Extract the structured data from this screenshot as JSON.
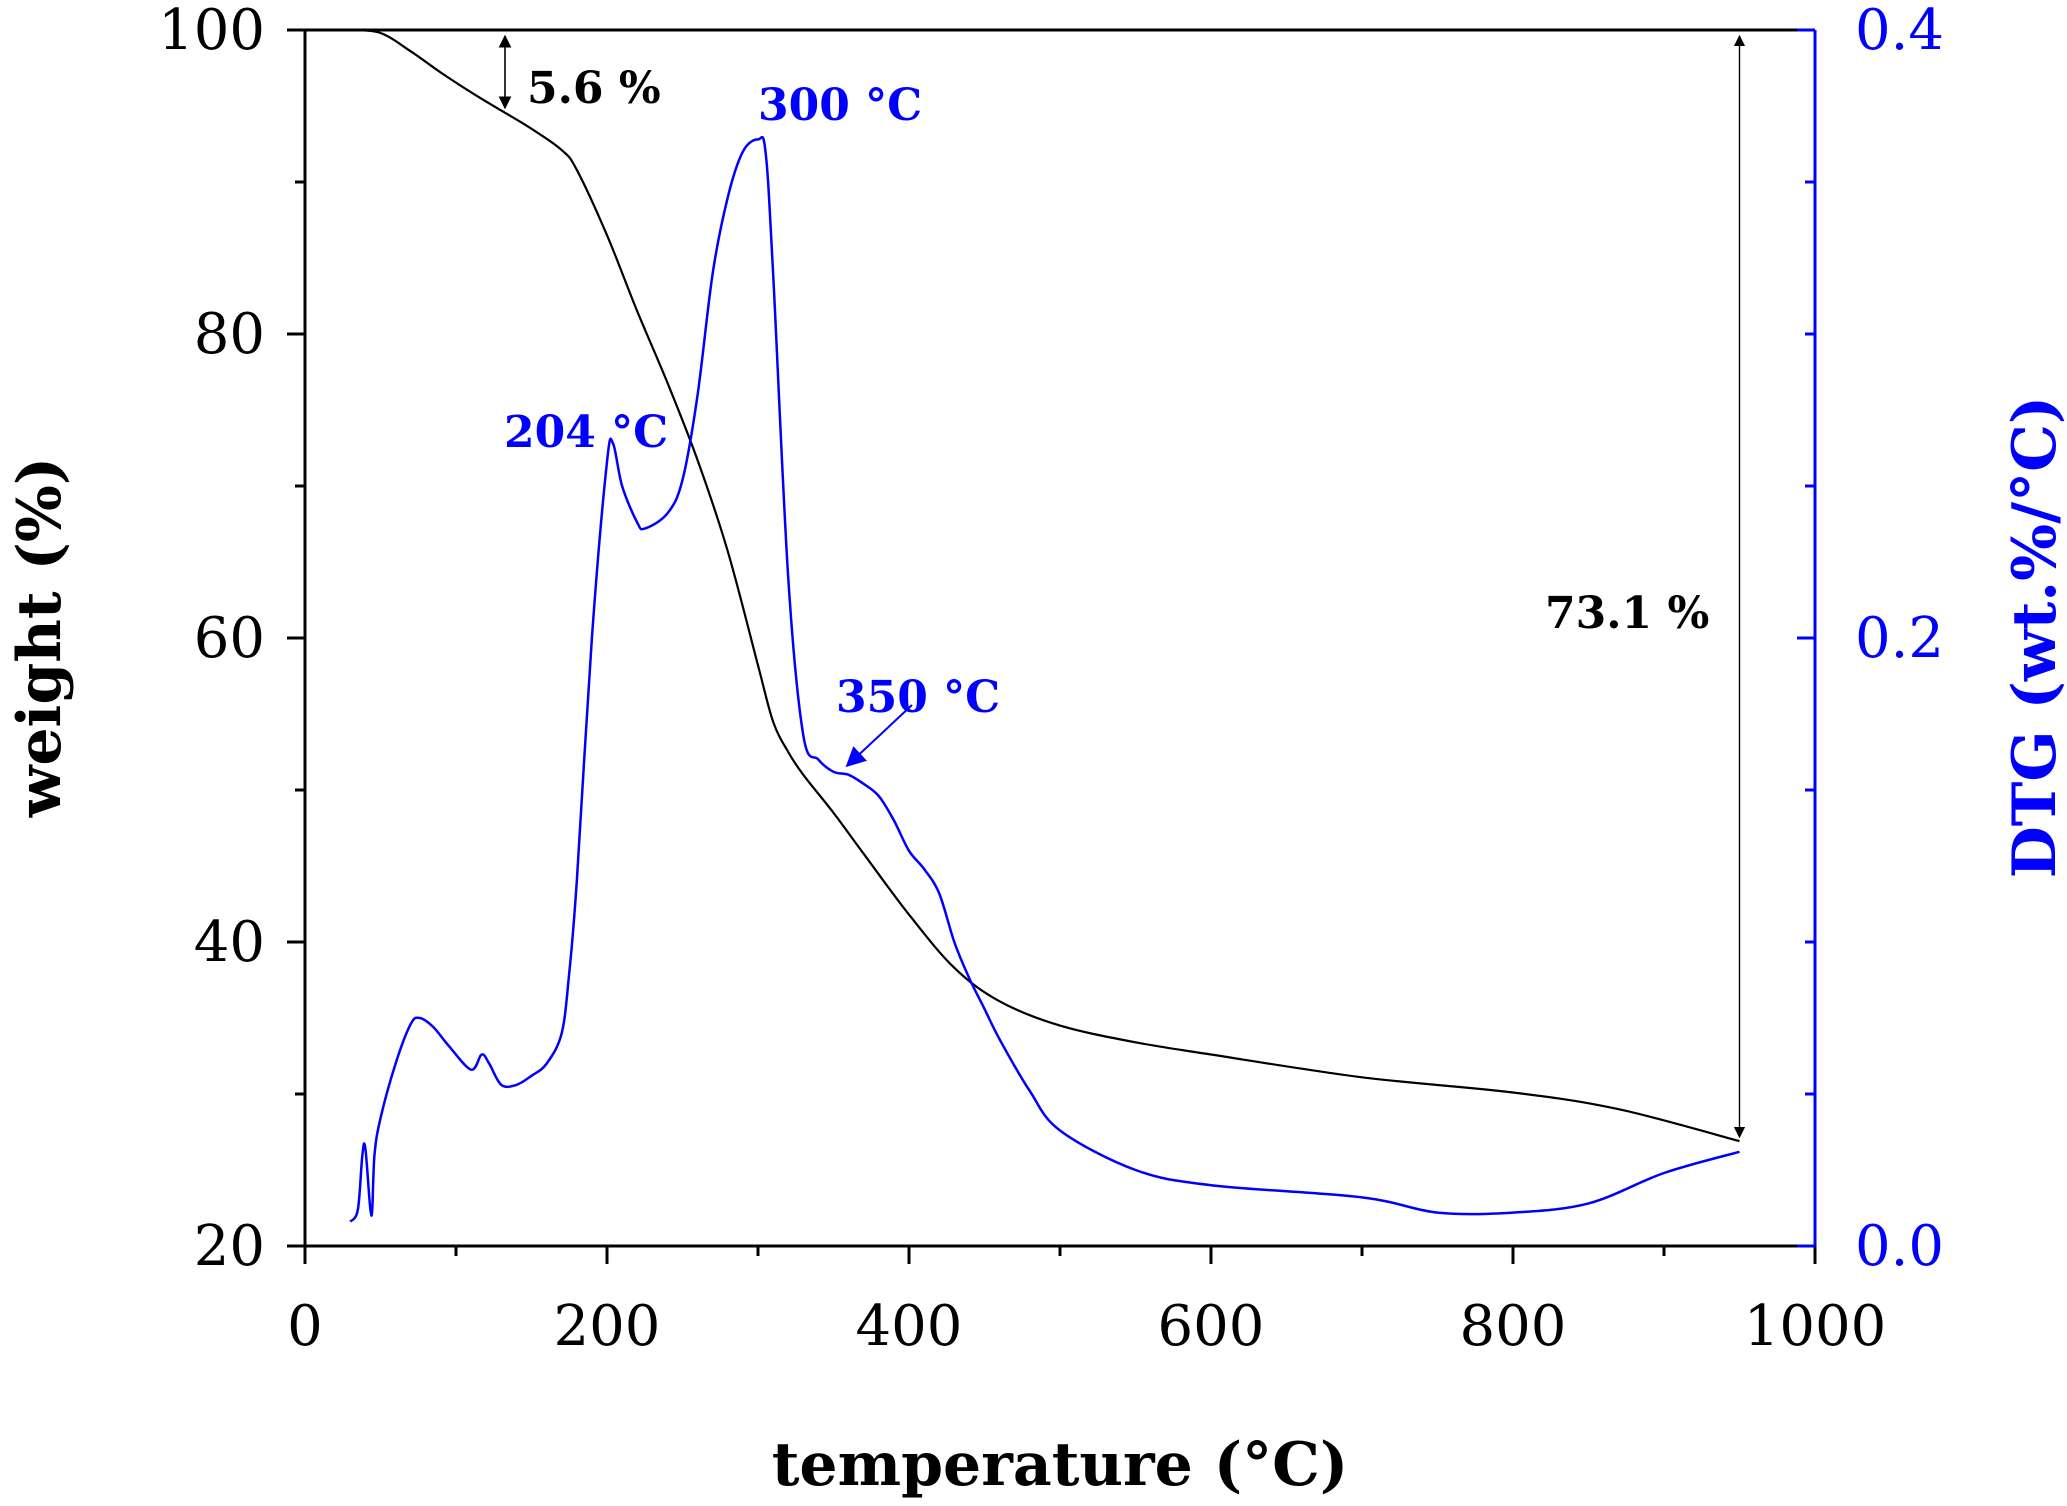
{
  "chart_data": {
    "type": "line",
    "title": "",
    "xlabel": "temperature (°C)",
    "ylabel_left": "weight (%)",
    "ylabel_right": "DTG (wt.%/°C)",
    "xlim": [
      0,
      1000
    ],
    "ylim_left": [
      20,
      100
    ],
    "ylim_right": [
      0.0,
      0.4
    ],
    "x_ticks": [
      "0",
      "200",
      "400",
      "600",
      "800",
      "1000"
    ],
    "y_left_ticks": [
      "20",
      "40",
      "60",
      "80",
      "100"
    ],
    "y_right_ticks": [
      "0.0",
      "0.2",
      "0.4"
    ],
    "grid": false,
    "legend": "none",
    "colors": {
      "weight": "#000000",
      "dtg": "#0000ff"
    },
    "series": [
      {
        "axis": "left",
        "x": [
          30,
          50,
          70,
          90,
          110,
          130,
          150,
          170,
          180,
          200,
          220,
          240,
          260,
          280,
          300,
          310,
          320,
          330,
          350,
          370,
          400,
          430,
          460,
          500,
          550,
          600,
          700,
          800,
          870,
          950
        ],
        "y": [
          100,
          99.8,
          98.6,
          97.2,
          95.9,
          94.7,
          93.5,
          92.1,
          90.8,
          86.5,
          81.5,
          76.8,
          71.7,
          65.7,
          58.2,
          54.5,
          52.5,
          51.0,
          48.5,
          45.8,
          41.8,
          38.3,
          36.1,
          34.5,
          33.4,
          32.6,
          31.1,
          30.1,
          29.0,
          26.9
        ]
      },
      {
        "axis": "right",
        "x": [
          30,
          35,
          38,
          40,
          44,
          46,
          50,
          60,
          70,
          76,
          85,
          95,
          110,
          117,
          122,
          130,
          140,
          150,
          160,
          170,
          175,
          180,
          190,
          200,
          204,
          210,
          220,
          225,
          240,
          250,
          260,
          270,
          280,
          290,
          300,
          305,
          310,
          320,
          330,
          340,
          350,
          360,
          370,
          380,
          390,
          400,
          410,
          420,
          430,
          440,
          450,
          460,
          480,
          500,
          550,
          600,
          700,
          750,
          800,
          850,
          900,
          950
        ],
        "y": [
          0.008,
          0.012,
          0.03,
          0.032,
          0.01,
          0.03,
          0.042,
          0.06,
          0.073,
          0.075,
          0.072,
          0.066,
          0.058,
          0.063,
          0.06,
          0.053,
          0.053,
          0.056,
          0.06,
          0.07,
          0.09,
          0.12,
          0.2,
          0.258,
          0.264,
          0.25,
          0.238,
          0.236,
          0.241,
          0.252,
          0.28,
          0.32,
          0.345,
          0.36,
          0.364,
          0.36,
          0.32,
          0.22,
          0.168,
          0.16,
          0.156,
          0.155,
          0.152,
          0.148,
          0.14,
          0.13,
          0.124,
          0.116,
          0.1,
          0.088,
          0.078,
          0.068,
          0.051,
          0.038,
          0.025,
          0.02,
          0.016,
          0.011,
          0.011,
          0.014,
          0.024,
          0.031
        ]
      }
    ],
    "annotations": {
      "initial_loss": "5.6 %",
      "total_loss": "73.1 %",
      "peak_204": "204 °C",
      "peak_300": "300 °C",
      "shoulder_350": "350 °C"
    }
  }
}
